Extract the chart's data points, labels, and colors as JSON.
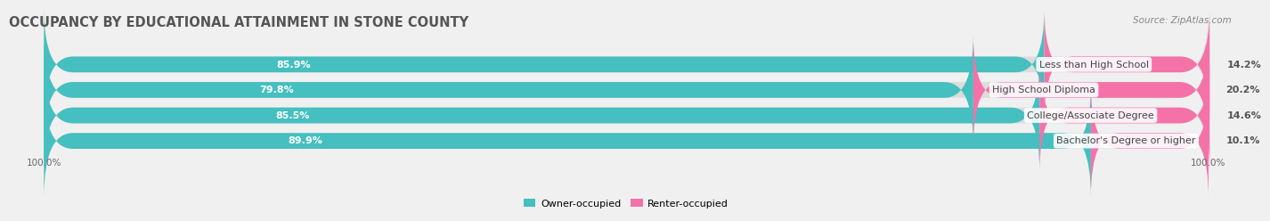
{
  "title": "OCCUPANCY BY EDUCATIONAL ATTAINMENT IN STONE COUNTY",
  "source": "Source: ZipAtlas.com",
  "categories": [
    "Less than High School",
    "High School Diploma",
    "College/Associate Degree",
    "Bachelor's Degree or higher"
  ],
  "owner_pct": [
    85.9,
    79.8,
    85.5,
    89.9
  ],
  "renter_pct": [
    14.2,
    20.2,
    14.6,
    10.1
  ],
  "owner_color": "#45bfbf",
  "renter_color": "#f472a8",
  "background_color": "#f0f0f0",
  "bar_bg_color": "#dcdcdc",
  "title_fontsize": 10.5,
  "label_fontsize": 8.0,
  "bar_height": 0.62,
  "x_left_label": "100.0%",
  "x_right_label": "100.0%",
  "legend_owner": "Owner-occupied",
  "legend_renter": "Renter-occupied"
}
